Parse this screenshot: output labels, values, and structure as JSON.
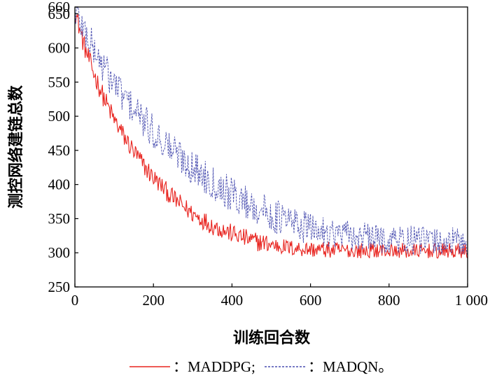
{
  "chart_data": {
    "type": "line",
    "title": "",
    "xlabel": "训练回合数",
    "ylabel": "测控网络建链总数",
    "xlim": [
      0,
      1000
    ],
    "ylim": [
      250,
      660
    ],
    "x_ticks": [
      0,
      200,
      400,
      600,
      800,
      1000
    ],
    "x_tick_labels": [
      "0",
      "200",
      "400",
      "600",
      "800",
      "1 000"
    ],
    "y_ticks": [
      250,
      300,
      350,
      400,
      450,
      500,
      550,
      600,
      650,
      660
    ],
    "y_tick_labels": [
      "250",
      "300",
      "350",
      "400",
      "450",
      "500",
      "550",
      "600",
      "650",
      "660"
    ],
    "grid": false,
    "legend_position": "bottom",
    "series": [
      {
        "name": "MADDPG",
        "legend_label": "：MADDPG;",
        "color": "#e8231e",
        "line_style": "solid",
        "x": [
          0,
          25,
          50,
          75,
          100,
          125,
          150,
          175,
          200,
          250,
          300,
          350,
          400,
          450,
          500,
          550,
          600,
          650,
          700,
          750,
          800,
          850,
          900,
          950,
          1000
        ],
        "values": [
          655,
          600,
          560,
          525,
          495,
          470,
          448,
          428,
          410,
          380,
          357,
          340,
          328,
          318,
          312,
          307,
          305,
          304,
          303,
          303,
          303,
          302,
          302,
          302,
          302
        ]
      },
      {
        "name": "MADQN",
        "legend_label": "：MADQN。",
        "color": "#4a4fb0",
        "line_style": "dashed",
        "x": [
          0,
          25,
          50,
          75,
          100,
          125,
          150,
          175,
          200,
          250,
          300,
          350,
          400,
          450,
          500,
          550,
          600,
          650,
          700,
          750,
          800,
          850,
          900,
          950,
          1000
        ],
        "values": [
          655,
          625,
          595,
          570,
          548,
          528,
          510,
          492,
          476,
          450,
          425,
          405,
          385,
          370,
          355,
          345,
          335,
          330,
          325,
          322,
          320,
          318,
          317,
          316,
          315
        ]
      }
    ]
  }
}
